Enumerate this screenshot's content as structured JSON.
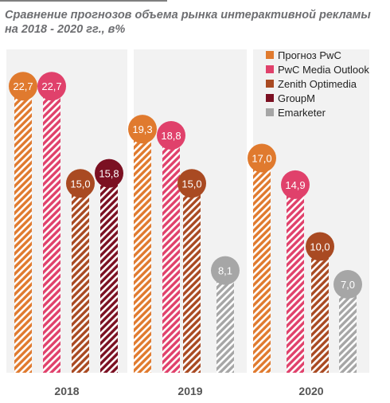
{
  "title": "Сравнение прогнозов объема рынка интерактивной рекламы на 2018 - 2020 гг., в%",
  "chart_data": {
    "type": "bar",
    "title": "Сравнение прогнозов объема рынка интерактивной рекламы на 2018 - 2020 гг., в%",
    "categories": [
      "2018",
      "2019",
      "2020"
    ],
    "series": [
      {
        "name": "Прогноз PwC",
        "color": "#e07a2e",
        "values": [
          22.7,
          19.3,
          17.0
        ],
        "labels": [
          "22,7",
          "19,3",
          "17,0"
        ]
      },
      {
        "name": "PwC Media Outlook",
        "color": "#e0416b",
        "values": [
          22.7,
          18.8,
          14.9
        ],
        "labels": [
          "22,7",
          "18,8",
          "14,9"
        ]
      },
      {
        "name": "Zenith Optimedia",
        "color": "#a94a22",
        "values": [
          15.0,
          15.0,
          10.0
        ],
        "labels": [
          "15,0",
          "15,0",
          "10,0"
        ]
      },
      {
        "name": "GroupM",
        "color": "#7b1022",
        "values": [
          15.8,
          null,
          null
        ],
        "labels": [
          "15,8",
          "",
          ""
        ]
      },
      {
        "name": "Emarketer",
        "color": "#a6a6a6",
        "values": [
          null,
          8.1,
          7.0
        ],
        "labels": [
          "",
          "8,1",
          "7,0"
        ]
      }
    ],
    "legend_position": "top-right",
    "grid": false
  }
}
